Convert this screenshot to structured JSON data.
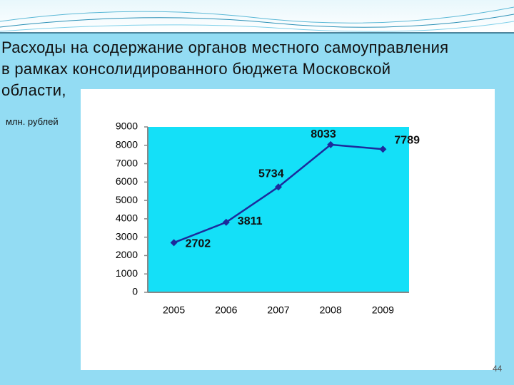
{
  "title": [
    "Расходы на содержание органов местного самоуправления",
    "в рамках консолидированного бюджета Московской",
    "области,"
  ],
  "subtitle": "млн. рублей",
  "page_number": "44",
  "chart_data": {
    "type": "line",
    "categories": [
      "2005",
      "2006",
      "2007",
      "2008",
      "2009"
    ],
    "values": [
      2702,
      3811,
      5734,
      8033,
      7789
    ],
    "color": "#1c2a9c",
    "plot_color": "#14e0f8",
    "ylim": [
      0,
      9000
    ],
    "yticks": [
      0,
      1000,
      2000,
      3000,
      4000,
      5000,
      6000,
      7000,
      8000,
      9000
    ],
    "data_labels": true
  }
}
